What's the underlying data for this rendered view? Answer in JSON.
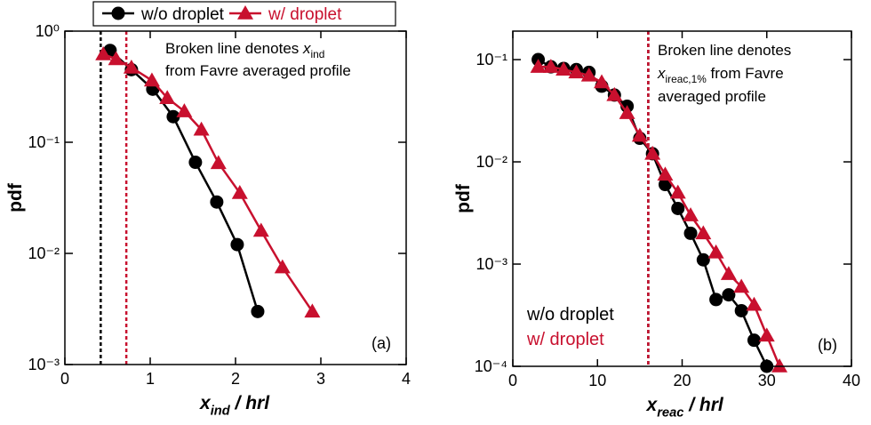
{
  "chart_data": [
    {
      "type": "line",
      "log_y": true,
      "legend": "top",
      "x_label": [
        {
          "text": "x",
          "style": "italic"
        },
        {
          "text": "ind",
          "style": "sub"
        },
        {
          "text": " / hrl",
          "style": "italic"
        }
      ],
      "y_label": "pdf",
      "panel_label": "(a)",
      "annotation": [
        [
          {
            "text": "Broken line denotes ",
            "style": "normal"
          },
          {
            "text": "x",
            "style": "italic"
          },
          {
            "text": "ind",
            "style": "sub"
          }
        ],
        [
          {
            "text": "from Favre averaged profile",
            "style": "normal"
          }
        ]
      ],
      "xlim": [
        0,
        4
      ],
      "xticks": [
        0,
        1,
        2,
        3,
        4
      ],
      "ylim": [
        0.001,
        1
      ],
      "yticks": [
        {
          "value": 0.001,
          "label": "10⁻³"
        },
        {
          "value": 0.01,
          "label": "10⁻²"
        },
        {
          "value": 0.1,
          "label": "10⁻¹"
        },
        {
          "value": 1,
          "label": "10⁰"
        }
      ],
      "vlines": [
        {
          "x": 0.42,
          "color": "#000000"
        },
        {
          "x": 0.72,
          "color": "#c8102e"
        }
      ],
      "series": [
        {
          "name": "w/o droplet",
          "color": "#000000",
          "marker": "circle",
          "x": [
            0.53,
            0.78,
            1.03,
            1.27,
            1.53,
            1.78,
            2.02,
            2.26
          ],
          "values": [
            0.67,
            0.45,
            0.3,
            0.17,
            0.066,
            0.029,
            0.012,
            0.003
          ]
        },
        {
          "name": "w/ droplet",
          "color": "#c8102e",
          "marker": "triangle",
          "x": [
            0.45,
            0.6,
            0.78,
            1.02,
            1.2,
            1.4,
            1.6,
            1.8,
            2.05,
            2.3,
            2.55,
            2.9
          ],
          "values": [
            0.62,
            0.56,
            0.47,
            0.36,
            0.25,
            0.19,
            0.13,
            0.065,
            0.035,
            0.016,
            0.0075,
            0.003
          ]
        }
      ]
    },
    {
      "type": "line",
      "log_y": true,
      "legend": "lower left",
      "x_label": [
        {
          "text": "x",
          "style": "italic"
        },
        {
          "text": "reac",
          "style": "sub"
        },
        {
          "text": " / hrl",
          "style": "italic"
        }
      ],
      "y_label": "pdf",
      "panel_label": "(b)",
      "annotation": [
        [
          {
            "text": "Broken line denotes",
            "style": "normal"
          }
        ],
        [
          {
            "text": "x",
            "style": "italic"
          },
          {
            "text": "ireac,1%",
            "style": "sub"
          },
          {
            "text": " from Favre",
            "style": "normal"
          }
        ],
        [
          {
            "text": "averaged profile",
            "style": "normal"
          }
        ]
      ],
      "xlim": [
        0,
        40
      ],
      "xticks": [
        0,
        10,
        20,
        30,
        40
      ],
      "ylim": [
        0.0001,
        0.19
      ],
      "yticks": [
        {
          "value": 0.0001,
          "label": "10⁻⁴"
        },
        {
          "value": 0.001,
          "label": "10⁻³"
        },
        {
          "value": 0.01,
          "label": "10⁻²"
        },
        {
          "value": 0.1,
          "label": "10⁻¹"
        }
      ],
      "vlines": [
        {
          "x": 16,
          "color": "#000000"
        },
        {
          "x": 16,
          "color": "#c8102e"
        }
      ],
      "series": [
        {
          "name": "w/o droplet",
          "color": "#000000",
          "marker": "circle",
          "x": [
            3,
            4.5,
            6,
            7.5,
            9,
            10.5,
            12,
            13.5,
            15,
            16.5,
            18,
            19.5,
            21,
            22.5,
            24,
            25.5,
            27,
            28.5,
            30
          ],
          "values": [
            0.1,
            0.085,
            0.082,
            0.08,
            0.075,
            0.055,
            0.045,
            0.035,
            0.017,
            0.012,
            0.006,
            0.0035,
            0.002,
            0.0011,
            0.00045,
            0.0005,
            0.00035,
            0.00018,
            0.0001
          ]
        },
        {
          "name": "w/ droplet",
          "color": "#c8102e",
          "marker": "triangle",
          "x": [
            3,
            4.5,
            6,
            7.5,
            9,
            10.5,
            12,
            13.5,
            15,
            16.5,
            18,
            19.5,
            21,
            22.5,
            24,
            25.5,
            27,
            28.5,
            30,
            31.5
          ],
          "values": [
            0.085,
            0.085,
            0.08,
            0.075,
            0.07,
            0.06,
            0.045,
            0.03,
            0.018,
            0.012,
            0.0075,
            0.005,
            0.003,
            0.002,
            0.0013,
            0.0008,
            0.0006,
            0.0004,
            0.0002,
            0.0001
          ]
        }
      ]
    }
  ]
}
